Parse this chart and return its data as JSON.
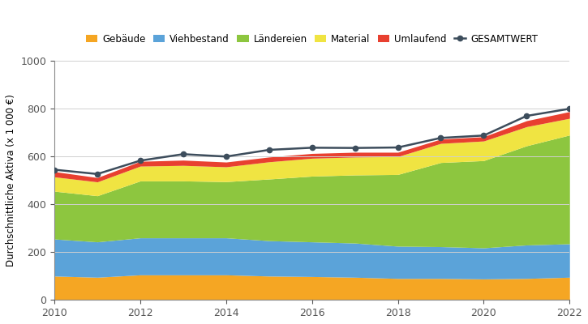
{
  "years": [
    2010,
    2011,
    2012,
    2013,
    2014,
    2015,
    2016,
    2017,
    2018,
    2019,
    2020,
    2021,
    2022
  ],
  "gebaeude": [
    100,
    95,
    105,
    105,
    105,
    100,
    98,
    95,
    90,
    90,
    88,
    90,
    95
  ],
  "viehbestand": [
    155,
    148,
    155,
    155,
    155,
    148,
    145,
    143,
    135,
    133,
    130,
    140,
    140
  ],
  "laendereien": [
    200,
    193,
    238,
    238,
    235,
    258,
    275,
    285,
    300,
    352,
    365,
    415,
    455
  ],
  "material": [
    60,
    58,
    62,
    65,
    62,
    72,
    75,
    75,
    75,
    80,
    82,
    80,
    70
  ],
  "umlaufend": [
    22,
    18,
    20,
    22,
    20,
    20,
    20,
    20,
    18,
    18,
    18,
    25,
    28
  ],
  "gesamtwert": [
    545,
    527,
    583,
    610,
    600,
    628,
    637,
    636,
    638,
    678,
    688,
    770,
    800
  ],
  "colors": {
    "gebaeude": "#F5A623",
    "viehbestand": "#5BA3D9",
    "laendereien": "#8DC63F",
    "material": "#F0E442",
    "umlaufend": "#E84030",
    "gesamtwert_line": "#3D4D5C"
  },
  "ylabel": "Durchschnittliche Aktiva (x 1 000 €)",
  "ylim": [
    0,
    1000
  ],
  "yticks": [
    0,
    200,
    400,
    600,
    800,
    1000
  ],
  "xticks": [
    2010,
    2012,
    2014,
    2016,
    2018,
    2020,
    2022
  ],
  "legend_labels": [
    "Gebäude",
    "Viehbestand",
    "Ländereien",
    "Material",
    "Umlaufend",
    "GESAMTWERT"
  ],
  "background_color": "#ffffff",
  "grid_color": "#d0d0d0"
}
